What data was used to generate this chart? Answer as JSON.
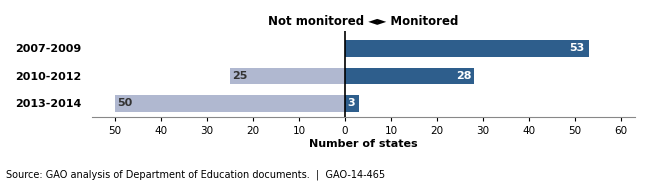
{
  "categories": [
    "2007-2009",
    "2010-2012",
    "2013-2014"
  ],
  "not_monitored": [
    0,
    25,
    50
  ],
  "monitored": [
    53,
    28,
    3
  ],
  "color_monitored": "#2E5E8C",
  "color_not_monitored": "#B0B8D0",
  "xlabel": "Number of states",
  "xlim_left": -55,
  "xlim_right": 63,
  "xticks": [
    -50,
    -40,
    -30,
    -20,
    -10,
    0,
    10,
    20,
    30,
    40,
    50,
    60
  ],
  "xticklabels": [
    "50",
    "40",
    "30",
    "20",
    "10",
    "0",
    "10",
    "20",
    "30",
    "40",
    "50",
    "60"
  ],
  "title_text": "Not monitored ◄► Monitored",
  "source_text": "Source: GAO analysis of Department of Education documents.  |  GAO-14-465",
  "bar_height": 0.6,
  "figure_width": 6.5,
  "figure_height": 1.82,
  "dpi": 100,
  "label_fontsize": 8,
  "ytick_fontsize": 8,
  "xtick_fontsize": 7.5,
  "xlabel_fontsize": 8,
  "title_fontsize": 8.5,
  "source_fontsize": 7
}
